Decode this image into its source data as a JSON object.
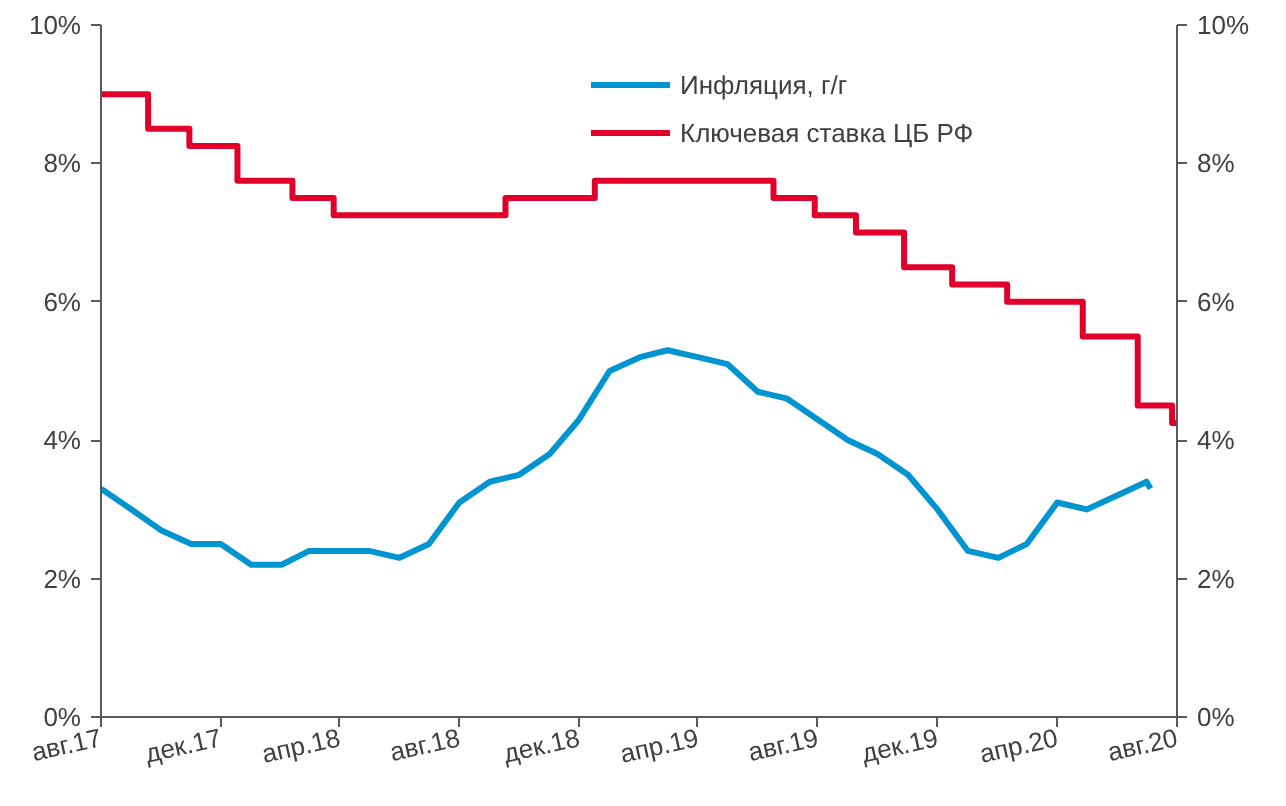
{
  "chart_data": {
    "type": "line",
    "xlim": [
      "2017-08-01",
      "2020-08-01"
    ],
    "xticks": [
      {
        "value": "2017-08-01",
        "label": "авг.17"
      },
      {
        "value": "2017-12-01",
        "label": "дек.17"
      },
      {
        "value": "2018-04-01",
        "label": "апр.18"
      },
      {
        "value": "2018-08-01",
        "label": "авг.18"
      },
      {
        "value": "2018-12-01",
        "label": "дек.18"
      },
      {
        "value": "2019-04-01",
        "label": "апр.19"
      },
      {
        "value": "2019-08-01",
        "label": "авг.19"
      },
      {
        "value": "2019-12-01",
        "label": "дек.19"
      },
      {
        "value": "2020-04-01",
        "label": "апр.20"
      },
      {
        "value": "2020-08-01",
        "label": "авг.20"
      }
    ],
    "ylim": [
      0,
      10
    ],
    "yticks": [
      {
        "value": 0,
        "label": "0%"
      },
      {
        "value": 2,
        "label": "2%"
      },
      {
        "value": 4,
        "label": "4%"
      },
      {
        "value": 6,
        "label": "6%"
      },
      {
        "value": 8,
        "label": "8%"
      },
      {
        "value": 10,
        "label": "10%"
      }
    ],
    "y2lim": [
      0,
      10
    ],
    "y2ticks": [
      {
        "value": 0,
        "label": "0%"
      },
      {
        "value": 2,
        "label": "2%"
      },
      {
        "value": 4,
        "label": "4%"
      },
      {
        "value": 6,
        "label": "6%"
      },
      {
        "value": 8,
        "label": "8%"
      },
      {
        "value": 10,
        "label": "10%"
      }
    ],
    "grid": false,
    "legend": "top right",
    "marker": "none",
    "line_style": "solid",
    "series": [
      {
        "name": "Инфляция, г/г",
        "color": "#0095d0",
        "x": [
          "2017-08-01",
          "2017-09-01",
          "2017-10-01",
          "2017-11-01",
          "2017-12-01",
          "2018-01-01",
          "2018-02-01",
          "2018-03-01",
          "2018-04-01",
          "2018-05-01",
          "2018-06-01",
          "2018-07-01",
          "2018-08-01",
          "2018-09-01",
          "2018-10-01",
          "2018-11-01",
          "2018-12-01",
          "2019-01-01",
          "2019-02-01",
          "2019-03-01",
          "2019-04-01",
          "2019-05-01",
          "2019-06-01",
          "2019-07-01",
          "2019-08-01",
          "2019-09-01",
          "2019-10-01",
          "2019-11-01",
          "2019-12-01",
          "2020-01-01",
          "2020-02-01",
          "2020-03-01",
          "2020-04-01",
          "2020-05-01",
          "2020-06-01",
          "2020-07-01",
          "2020-07-05"
        ],
        "values": [
          3.3,
          3.0,
          2.7,
          2.5,
          2.5,
          2.2,
          2.2,
          2.4,
          2.4,
          2.4,
          2.3,
          2.5,
          3.1,
          3.4,
          3.5,
          3.8,
          4.3,
          5.0,
          5.2,
          5.3,
          5.2,
          5.1,
          4.7,
          4.6,
          4.3,
          4.0,
          3.8,
          3.5,
          3.0,
          2.4,
          2.3,
          2.5,
          3.1,
          3.0,
          3.2,
          3.4,
          3.3
        ]
      },
      {
        "name": "Ключевая ставка ЦБ РФ",
        "color": "#e0002a",
        "type": "step",
        "x": [
          "2017-08-01",
          "2017-09-18",
          "2017-10-30",
          "2017-12-18",
          "2018-02-12",
          "2018-03-26",
          "2018-09-17",
          "2018-12-17",
          "2019-06-17",
          "2019-07-29",
          "2019-09-09",
          "2019-10-28",
          "2019-12-16",
          "2020-02-10",
          "2020-04-27",
          "2020-06-22",
          "2020-07-27",
          "2020-07-31"
        ],
        "values": [
          9.0,
          8.5,
          8.25,
          7.75,
          7.5,
          7.25,
          7.5,
          7.75,
          7.5,
          7.25,
          7.0,
          6.5,
          6.25,
          6.0,
          5.5,
          4.5,
          4.25,
          4.25
        ]
      }
    ]
  }
}
